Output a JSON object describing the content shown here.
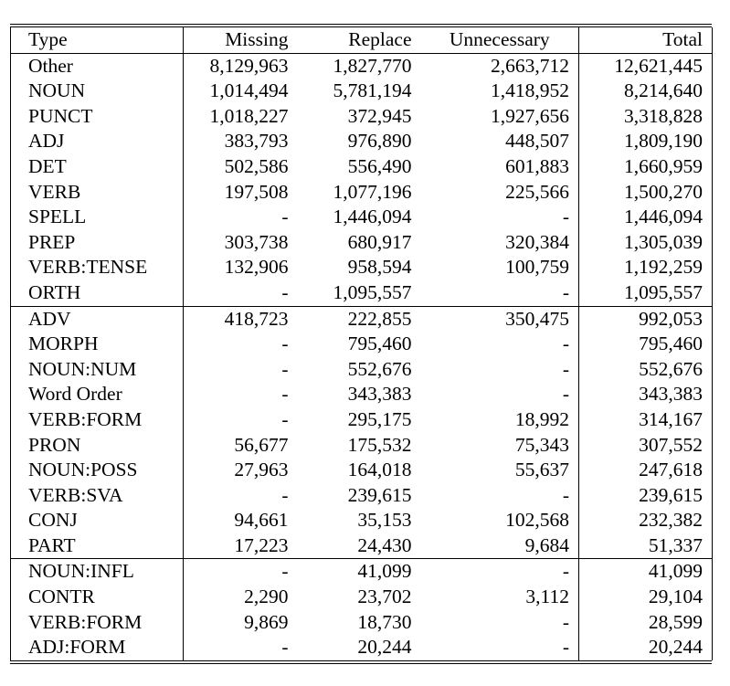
{
  "table": {
    "headers": [
      "Type",
      "Missing",
      "Replace",
      "Unnecessary",
      "Total"
    ],
    "groups": [
      [
        [
          "Other",
          "8,129,963",
          "1,827,770",
          "2,663,712",
          "12,621,445"
        ],
        [
          "NOUN",
          "1,014,494",
          "5,781,194",
          "1,418,952",
          "8,214,640"
        ],
        [
          "PUNCT",
          "1,018,227",
          "372,945",
          "1,927,656",
          "3,318,828"
        ],
        [
          "ADJ",
          "383,793",
          "976,890",
          "448,507",
          "1,809,190"
        ],
        [
          "DET",
          "502,586",
          "556,490",
          "601,883",
          "1,660,959"
        ],
        [
          "VERB",
          "197,508",
          "1,077,196",
          "225,566",
          "1,500,270"
        ],
        [
          "SPELL",
          "-",
          "1,446,094",
          "-",
          "1,446,094"
        ],
        [
          "PREP",
          "303,738",
          "680,917",
          "320,384",
          "1,305,039"
        ],
        [
          "VERB:TENSE",
          "132,906",
          "958,594",
          "100,759",
          "1,192,259"
        ],
        [
          "ORTH",
          "-",
          "1,095,557",
          "-",
          "1,095,557"
        ]
      ],
      [
        [
          "ADV",
          "418,723",
          "222,855",
          "350,475",
          "992,053"
        ],
        [
          "MORPH",
          "-",
          "795,460",
          "-",
          "795,460"
        ],
        [
          "NOUN:NUM",
          "-",
          "552,676",
          "-",
          "552,676"
        ],
        [
          "Word Order",
          "-",
          "343,383",
          "-",
          "343,383"
        ],
        [
          "VERB:FORM",
          "-",
          "295,175",
          "18,992",
          "314,167"
        ],
        [
          "PRON",
          "56,677",
          "175,532",
          "75,343",
          "307,552"
        ],
        [
          "NOUN:POSS",
          "27,963",
          "164,018",
          "55,637",
          "247,618"
        ],
        [
          "VERB:SVA",
          "-",
          "239,615",
          "-",
          "239,615"
        ],
        [
          "CONJ",
          "94,661",
          "35,153",
          "102,568",
          "232,382"
        ],
        [
          "PART",
          "17,223",
          "24,430",
          "9,684",
          "51,337"
        ]
      ],
      [
        [
          "NOUN:INFL",
          "-",
          "41,099",
          "-",
          "41,099"
        ],
        [
          "CONTR",
          "2,290",
          "23,702",
          "3,112",
          "29,104"
        ],
        [
          "VERB:FORM",
          "9,869",
          "18,730",
          "-",
          "28,599"
        ],
        [
          "ADJ:FORM",
          "-",
          "20,244",
          "-",
          "20,244"
        ]
      ]
    ]
  }
}
